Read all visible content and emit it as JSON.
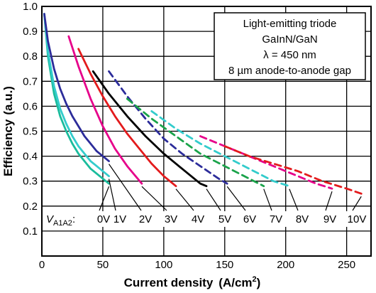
{
  "chart_data": {
    "type": "line",
    "xlabel": "Current density",
    "xunit": "(A/cm",
    "xunit_sup": "2",
    "xunit_close": ")",
    "ylabel": "Efficiency",
    "yunit": "(a.u.)",
    "xlim": [
      0,
      270
    ],
    "ylim": [
      0,
      1.0
    ],
    "xticks": [
      0,
      50,
      100,
      150,
      200,
      250
    ],
    "yticks": [
      0.1,
      0.2,
      0.3,
      0.4,
      0.5,
      0.6,
      0.7,
      0.8,
      0.9,
      1.0
    ],
    "ytick_labels": [
      "0.1",
      "0.2",
      "0.3",
      "0.4",
      "0.5",
      "0.6",
      "0.7",
      "0.8",
      "0.9",
      "1.0"
    ],
    "grid": true,
    "annotation_box": {
      "lines": [
        "Light-emitting triode",
        "GaInN/GaN",
        "λ = 450 nm",
        "8 µm anode-to-anode gap"
      ]
    },
    "series_label_prefix": "V",
    "series_label_sub": "A1A2",
    "series_label_colon": ":",
    "series": [
      {
        "name": "0V",
        "color": "#1abc9c",
        "style": "solid",
        "x": [
          2,
          5,
          10,
          15,
          20,
          25,
          30,
          35,
          40,
          45,
          50,
          55
        ],
        "y": [
          0.97,
          0.8,
          0.65,
          0.56,
          0.5,
          0.45,
          0.41,
          0.38,
          0.35,
          0.33,
          0.31,
          0.29
        ]
      },
      {
        "name": "1V",
        "color": "#33cccc",
        "style": "solid",
        "x": [
          2,
          5,
          10,
          15,
          20,
          25,
          30,
          35,
          40,
          45,
          50,
          55
        ],
        "y": [
          0.97,
          0.82,
          0.68,
          0.59,
          0.53,
          0.48,
          0.44,
          0.41,
          0.38,
          0.36,
          0.34,
          0.32
        ]
      },
      {
        "name": "2V",
        "color": "#2c2c9a",
        "style": "solid",
        "x": [
          2,
          5,
          10,
          15,
          20,
          25,
          30,
          35,
          40,
          45,
          50,
          55
        ],
        "y": [
          0.97,
          0.86,
          0.75,
          0.67,
          0.61,
          0.56,
          0.52,
          0.48,
          0.45,
          0.42,
          0.4,
          0.38
        ]
      },
      {
        "name": "3V",
        "color": "#e6008a",
        "style": "solid",
        "x": [
          22,
          30,
          40,
          50,
          60,
          70,
          82
        ],
        "y": [
          0.88,
          0.76,
          0.63,
          0.52,
          0.43,
          0.36,
          0.29
        ]
      },
      {
        "name": "4V",
        "color": "#e31a1c",
        "style": "solid",
        "x": [
          30,
          40,
          50,
          60,
          70,
          80,
          90,
          100,
          110
        ],
        "y": [
          0.83,
          0.73,
          0.64,
          0.56,
          0.49,
          0.43,
          0.37,
          0.32,
          0.28
        ]
      },
      {
        "name": "5V",
        "color": "#000000",
        "style": "solid",
        "x": [
          42,
          55,
          70,
          85,
          100,
          115,
          130,
          135
        ],
        "y": [
          0.74,
          0.65,
          0.56,
          0.48,
          0.41,
          0.35,
          0.29,
          0.28
        ]
      },
      {
        "name": "6V",
        "color": "#2c2c9a",
        "style": "dashed",
        "x": [
          55,
          70,
          85,
          100,
          115,
          130,
          145,
          152
        ],
        "y": [
          0.74,
          0.64,
          0.55,
          0.47,
          0.41,
          0.36,
          0.31,
          0.29
        ]
      },
      {
        "name": "7V",
        "color": "#1aa34a",
        "style": "dashed",
        "x": [
          70,
          90,
          110,
          130,
          150,
          170,
          182
        ],
        "y": [
          0.63,
          0.55,
          0.48,
          0.41,
          0.36,
          0.31,
          0.28
        ]
      },
      {
        "name": "8V",
        "color": "#33cccc",
        "style": "dashed",
        "x": [
          90,
          110,
          130,
          150,
          170,
          190,
          203
        ],
        "y": [
          0.58,
          0.51,
          0.45,
          0.4,
          0.35,
          0.3,
          0.28
        ]
      },
      {
        "name": "9V",
        "color": "#e6008a",
        "style": "dashed",
        "x": [
          130,
          150,
          170,
          190,
          210,
          225,
          238
        ],
        "y": [
          0.48,
          0.44,
          0.4,
          0.36,
          0.32,
          0.29,
          0.27
        ]
      },
      {
        "name": "10V",
        "color": "#e31a1c",
        "style": "dashed",
        "x": [
          150,
          170,
          190,
          210,
          230,
          250,
          262
        ],
        "y": [
          0.44,
          0.4,
          0.37,
          0.34,
          0.3,
          0.27,
          0.25
        ]
      }
    ]
  }
}
